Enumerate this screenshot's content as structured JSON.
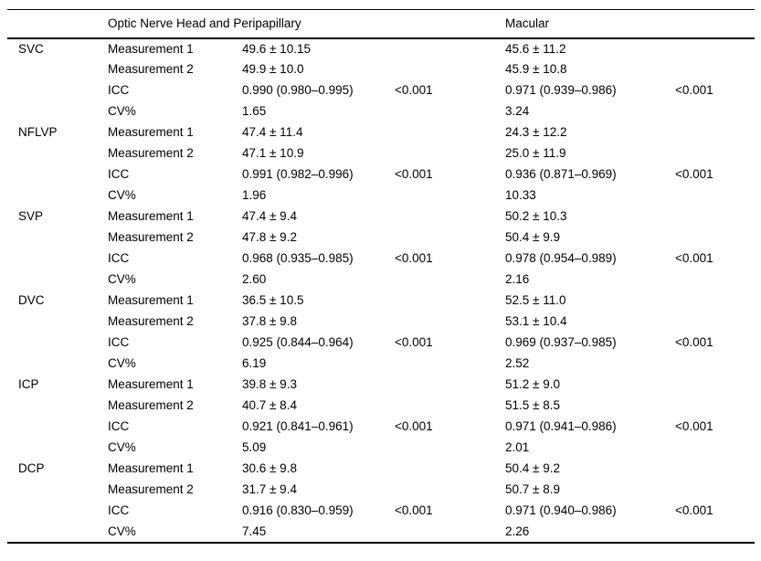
{
  "colors": {
    "background": "#ffffff",
    "text": "#000000",
    "rule": "#000000"
  },
  "table": {
    "headers": {
      "onh": "Optic Nerve Head and Peripapillary",
      "macular": "Macular"
    },
    "groups": [
      {
        "name": "SVC",
        "rows": [
          {
            "label": "Measurement 1",
            "onh": "49.6 ± 10.15",
            "mac": "45.6 ± 11.2"
          },
          {
            "label": "Measurement 2",
            "onh": "49.9 ± 10.0",
            "mac": "45.9 ± 10.8"
          },
          {
            "label": "ICC",
            "onh": "0.990 (0.980–0.995)",
            "onh_p": "<0.001",
            "mac": "0.971 (0.939–0.986)",
            "mac_p": "<0.001"
          },
          {
            "label": "CV%",
            "onh": "1.65",
            "mac": "3.24"
          }
        ]
      },
      {
        "name": "NFLVP",
        "rows": [
          {
            "label": "Measurement 1",
            "onh": "47.4 ± 11.4",
            "mac": "24.3 ± 12.2"
          },
          {
            "label": "Measurement 2",
            "onh": "47.1 ± 10.9",
            "mac": "25.0 ± 11.9"
          },
          {
            "label": "ICC",
            "onh": "0.991 (0.982–0.996)",
            "onh_p": "<0.001",
            "mac": "0.936 (0.871–0.969)",
            "mac_p": "<0.001"
          },
          {
            "label": "CV%",
            "onh": "1.96",
            "mac": "10.33"
          }
        ]
      },
      {
        "name": "SVP",
        "rows": [
          {
            "label": "Measurement 1",
            "onh": "47.4 ± 9.4",
            "mac": "50.2 ± 10.3"
          },
          {
            "label": "Measurement 2",
            "onh": "47.8 ± 9.2",
            "mac": "50.4 ± 9.9"
          },
          {
            "label": "ICC",
            "onh": "0.968 (0.935–0.985)",
            "onh_p": "<0.001",
            "mac": "0.978 (0.954–0.989)",
            "mac_p": "<0.001"
          },
          {
            "label": "CV%",
            "onh": "2.60",
            "mac": "2.16"
          }
        ]
      },
      {
        "name": "DVC",
        "rows": [
          {
            "label": "Measurement 1",
            "onh": "36.5 ± 10.5",
            "mac": "52.5 ± 11.0"
          },
          {
            "label": "Measurement 2",
            "onh": "37.8 ± 9.8",
            "mac": "53.1 ± 10.4"
          },
          {
            "label": "ICC",
            "onh": "0.925 (0.844–0.964)",
            "onh_p": "<0.001",
            "mac": "0.969 (0.937–0.985)",
            "mac_p": "<0.001"
          },
          {
            "label": "CV%",
            "onh": "6.19",
            "mac": "2.52"
          }
        ]
      },
      {
        "name": "ICP",
        "rows": [
          {
            "label": "Measurement 1",
            "onh": "39.8 ± 9.3",
            "mac": "51.2 ± 9.0"
          },
          {
            "label": "Measurement 2",
            "onh": "40.7 ± 8.4",
            "mac": "51.5 ± 8.5"
          },
          {
            "label": "ICC",
            "onh": "0.921 (0.841–0.961)",
            "onh_p": "<0.001",
            "mac": "0.971 (0.941–0.986)",
            "mac_p": "<0.001"
          },
          {
            "label": "CV%",
            "onh": "5.09",
            "mac": "2.01"
          }
        ]
      },
      {
        "name": "DCP",
        "rows": [
          {
            "label": "Measurement 1",
            "onh": "30.6 ± 9.8",
            "mac": "50.4 ± 9.2"
          },
          {
            "label": "Measurement 2",
            "onh": "31.7 ± 9.4",
            "mac": "50.7 ± 8.9"
          },
          {
            "label": "ICC",
            "onh": "0.916 (0.830–0.959)",
            "onh_p": "<0.001",
            "mac": "0.971 (0.940–0.986)",
            "mac_p": "<0.001"
          },
          {
            "label": "CV%",
            "onh": "7.45",
            "mac": "2.26"
          }
        ]
      }
    ]
  }
}
